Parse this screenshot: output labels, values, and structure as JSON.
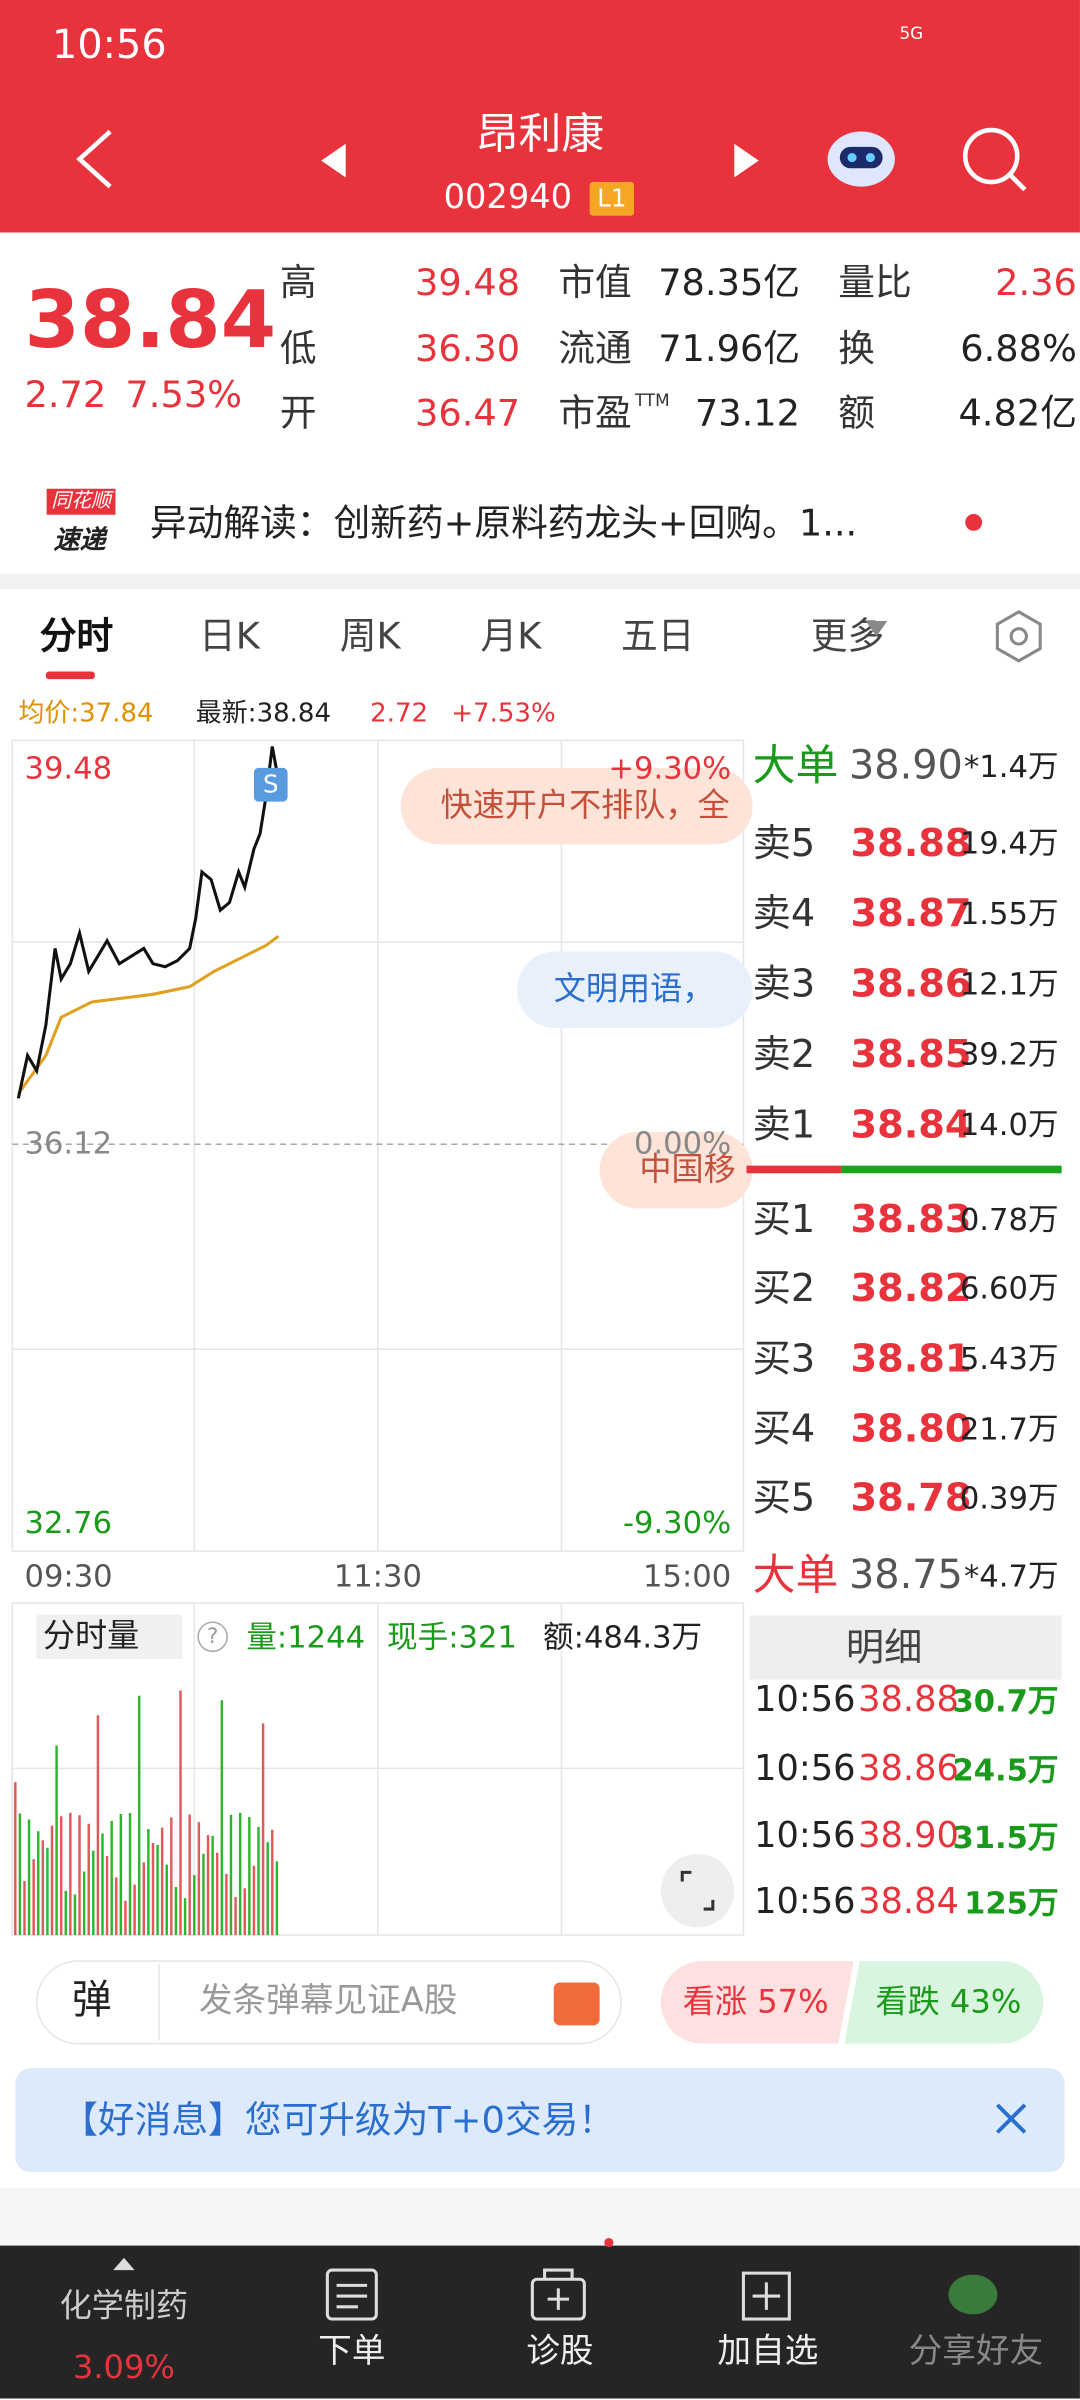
{
  "status": {
    "time": "10:56",
    "network": "5G"
  },
  "header": {
    "title": "昂利康",
    "code": "002940",
    "badge": "L1"
  },
  "quote": {
    "price": "38.84",
    "change": "2.72",
    "pct": "7.53%"
  },
  "stats": [
    [
      {
        "label": "高",
        "value": "39.48"
      },
      {
        "label": "市值",
        "value": "78.35亿"
      },
      {
        "label": "量比",
        "value": "2.36"
      }
    ],
    [
      {
        "label": "低",
        "value": "36.30"
      },
      {
        "label": "流通",
        "value": "71.96亿"
      },
      {
        "label": "换",
        "value": "6.88%"
      }
    ],
    [
      {
        "label": "开",
        "value": "36.47"
      },
      {
        "label": "市盈",
        "sup": "TTM",
        "value": "73.12"
      },
      {
        "label": "额",
        "value": "4.82亿"
      }
    ]
  ],
  "news": {
    "logo_top": "同花顺",
    "logo_bottom": "速递",
    "text": "异动解读：创新药+原料药龙头+回购。1..."
  },
  "tabs": [
    "分时",
    "日K",
    "周K",
    "月K",
    "五日",
    "更多"
  ],
  "info": {
    "avg": "均价:37.84",
    "latest": "最新:38.84",
    "change": "2.72",
    "pct": "+7.53%"
  },
  "chart": {
    "high": "39.48",
    "high_pct": "+9.30%",
    "base": "36.12",
    "base_pct": "0.00%",
    "low": "32.76",
    "low_pct": "-9.30%",
    "times": [
      "09:30",
      "11:30",
      "15:00"
    ],
    "marker": "S",
    "overlays": [
      "快速开户不排队，全",
      "文明用语，",
      "中国移"
    ]
  },
  "volume": {
    "label": "分时量",
    "help": "?",
    "vol": "量:1244",
    "hand": "现手:321",
    "amount": "额:484.3万"
  },
  "orderbook": {
    "big_top": {
      "label": "大单",
      "price": "38.90",
      "vol": "*1.4万"
    },
    "sells": [
      {
        "label": "卖5",
        "price": "38.88",
        "vol": "19.4万"
      },
      {
        "label": "卖4",
        "price": "38.87",
        "vol": "1.55万"
      },
      {
        "label": "卖3",
        "price": "38.86",
        "vol": "12.1万"
      },
      {
        "label": "卖2",
        "price": "38.85",
        "vol": "39.2万"
      },
      {
        "label": "卖1",
        "price": "38.84",
        "vol": "14.0万"
      }
    ],
    "buys": [
      {
        "label": "买1",
        "price": "38.83",
        "vol": "0.78万"
      },
      {
        "label": "买2",
        "price": "38.82",
        "vol": "6.60万"
      },
      {
        "label": "买3",
        "price": "38.81",
        "vol": "5.43万"
      },
      {
        "label": "买4",
        "price": "38.80",
        "vol": "21.7万"
      },
      {
        "label": "买5",
        "price": "38.78",
        "vol": "0.39万"
      }
    ],
    "big_bottom": {
      "label": "大单",
      "price": "38.75",
      "vol": "*4.7万"
    },
    "detail": "明细",
    "trades": [
      {
        "time": "10:56",
        "price": "38.88",
        "vol": "30.7万"
      },
      {
        "time": "10:56",
        "price": "38.86",
        "vol": "24.5万"
      },
      {
        "time": "10:56",
        "price": "38.90",
        "vol": "31.5万"
      },
      {
        "time": "10:56",
        "price": "38.84",
        "vol": "125万"
      }
    ]
  },
  "danmu": {
    "icon": "弹",
    "placeholder": "发条弹幕见证A股",
    "up": "看涨 57%",
    "down": "看跌 43%"
  },
  "banner": {
    "text": "【好消息】您可升级为T+0交易！"
  },
  "nav": {
    "sector": "化学制药",
    "sector_pct": "3.09%",
    "items": [
      "下单",
      "诊股",
      "加自选",
      "分享好友"
    ]
  }
}
